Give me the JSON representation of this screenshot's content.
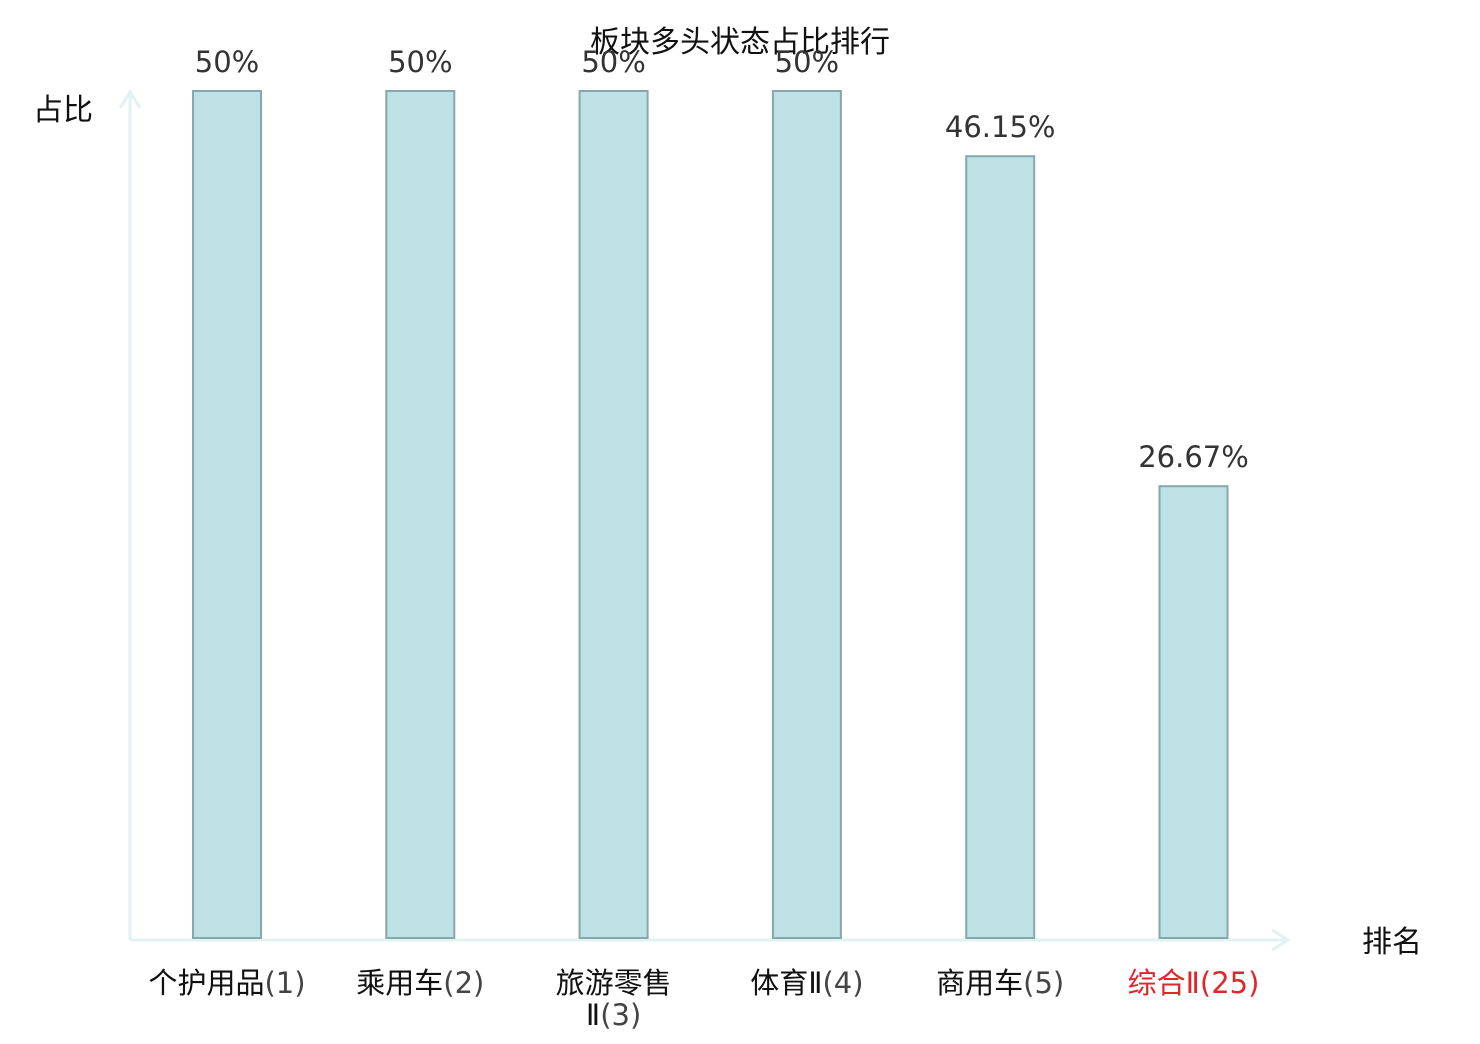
{
  "chart_data": {
    "type": "bar",
    "title": "板块多头状态占比排行",
    "xlabel": "排名",
    "ylabel": "占比",
    "ylim": [
      0,
      50
    ],
    "grid": false,
    "legend": "none",
    "categories": [
      {
        "name": "个护用品",
        "rank": "(1)",
        "label_lines": [
          {
            "name": "个护用品",
            "rank": "(1)"
          }
        ],
        "highlight": false
      },
      {
        "name": "乘用车",
        "rank": "(2)",
        "label_lines": [
          {
            "name": "乘用车",
            "rank": "(2)"
          }
        ],
        "highlight": false
      },
      {
        "name": "旅游零售Ⅱ",
        "rank": "(3)",
        "label_lines": [
          {
            "name": "旅游零售",
            "rank": ""
          },
          {
            "name": "Ⅱ",
            "rank": "(3)"
          }
        ],
        "highlight": false
      },
      {
        "name": "体育Ⅱ",
        "rank": "(4)",
        "label_lines": [
          {
            "name": "体育Ⅱ",
            "rank": "(4)"
          }
        ],
        "highlight": false
      },
      {
        "name": "商用车",
        "rank": "(5)",
        "label_lines": [
          {
            "name": "商用车",
            "rank": "(5)"
          }
        ],
        "highlight": false
      },
      {
        "name": "综合Ⅱ",
        "rank": "(25)",
        "label_lines": [
          {
            "name": "综合Ⅱ",
            "rank": "(25)"
          }
        ],
        "highlight": true
      }
    ],
    "values": [
      50,
      50,
      50,
      50,
      46.15,
      26.67
    ],
    "value_labels": [
      "50%",
      "50%",
      "50%",
      "50%",
      "46.15%",
      "26.67%"
    ]
  },
  "colors": {
    "bar_fill": "#bde1e4",
    "bar_stroke": "#86a7ab",
    "axis": "#e0f3f0",
    "text": "#111111",
    "value_label": "#333333",
    "rank_text": "#444444",
    "highlight": "#e0262a"
  }
}
